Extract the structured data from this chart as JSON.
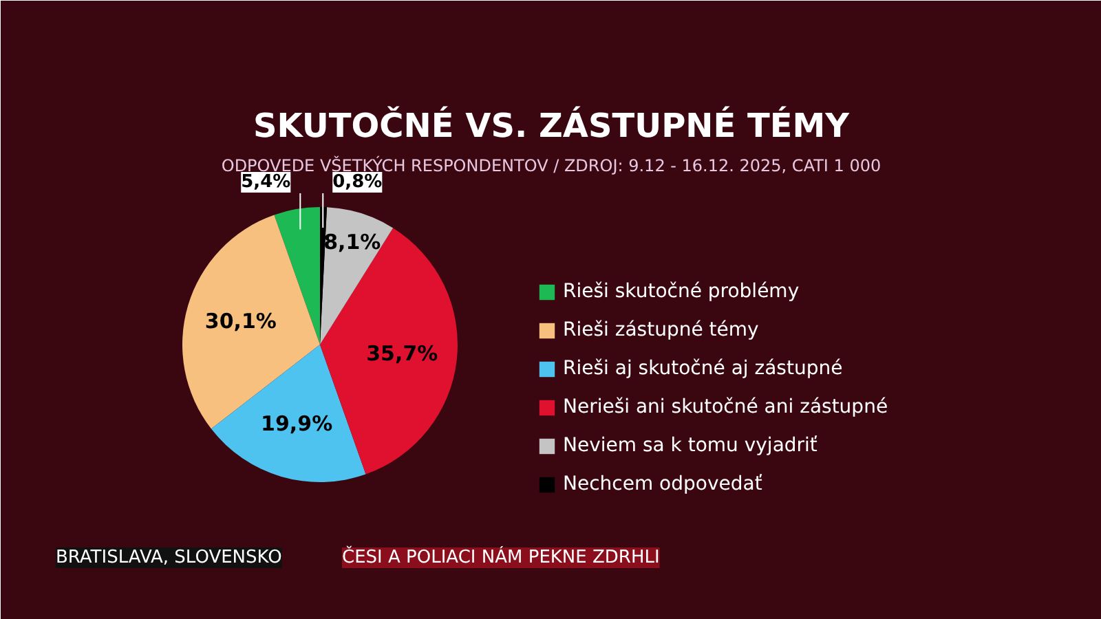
{
  "chart_data": {
    "type": "pie",
    "title": "SKUTOČNÉ VS. ZÁSTUPNÉ TÉMY",
    "subtitle": "ODPOVEDE VŠETKÝCH RESPONDENTOV / ZDROJ: 9.12 - 16.12. 2025, CATI 1 000",
    "categories": [
      "Rieši skutočné problémy",
      "Rieši zástupné témy",
      "Rieši aj skutočné aj zástupné",
      "Nerieši ani skutočné ani zástupné",
      "Neviem sa k tomu vyjadriť",
      "Nechcem odpovedať"
    ],
    "values": [
      5.4,
      30.1,
      19.9,
      35.7,
      8.1,
      0.8
    ],
    "colors": [
      "#1db954",
      "#f7c07f",
      "#4fc3ef",
      "#e0102f",
      "#c4c4c4",
      "#000000"
    ],
    "value_labels": [
      "5,4%",
      "30,1%",
      "19,9%",
      "35,7%",
      "8,1%",
      "0,8%"
    ],
    "legend": "right",
    "annotations": [
      "BRATISLAVA, SLOVENSKO",
      "ČESI A POLIACI NÁM PEKNE ZDRHLI"
    ]
  }
}
